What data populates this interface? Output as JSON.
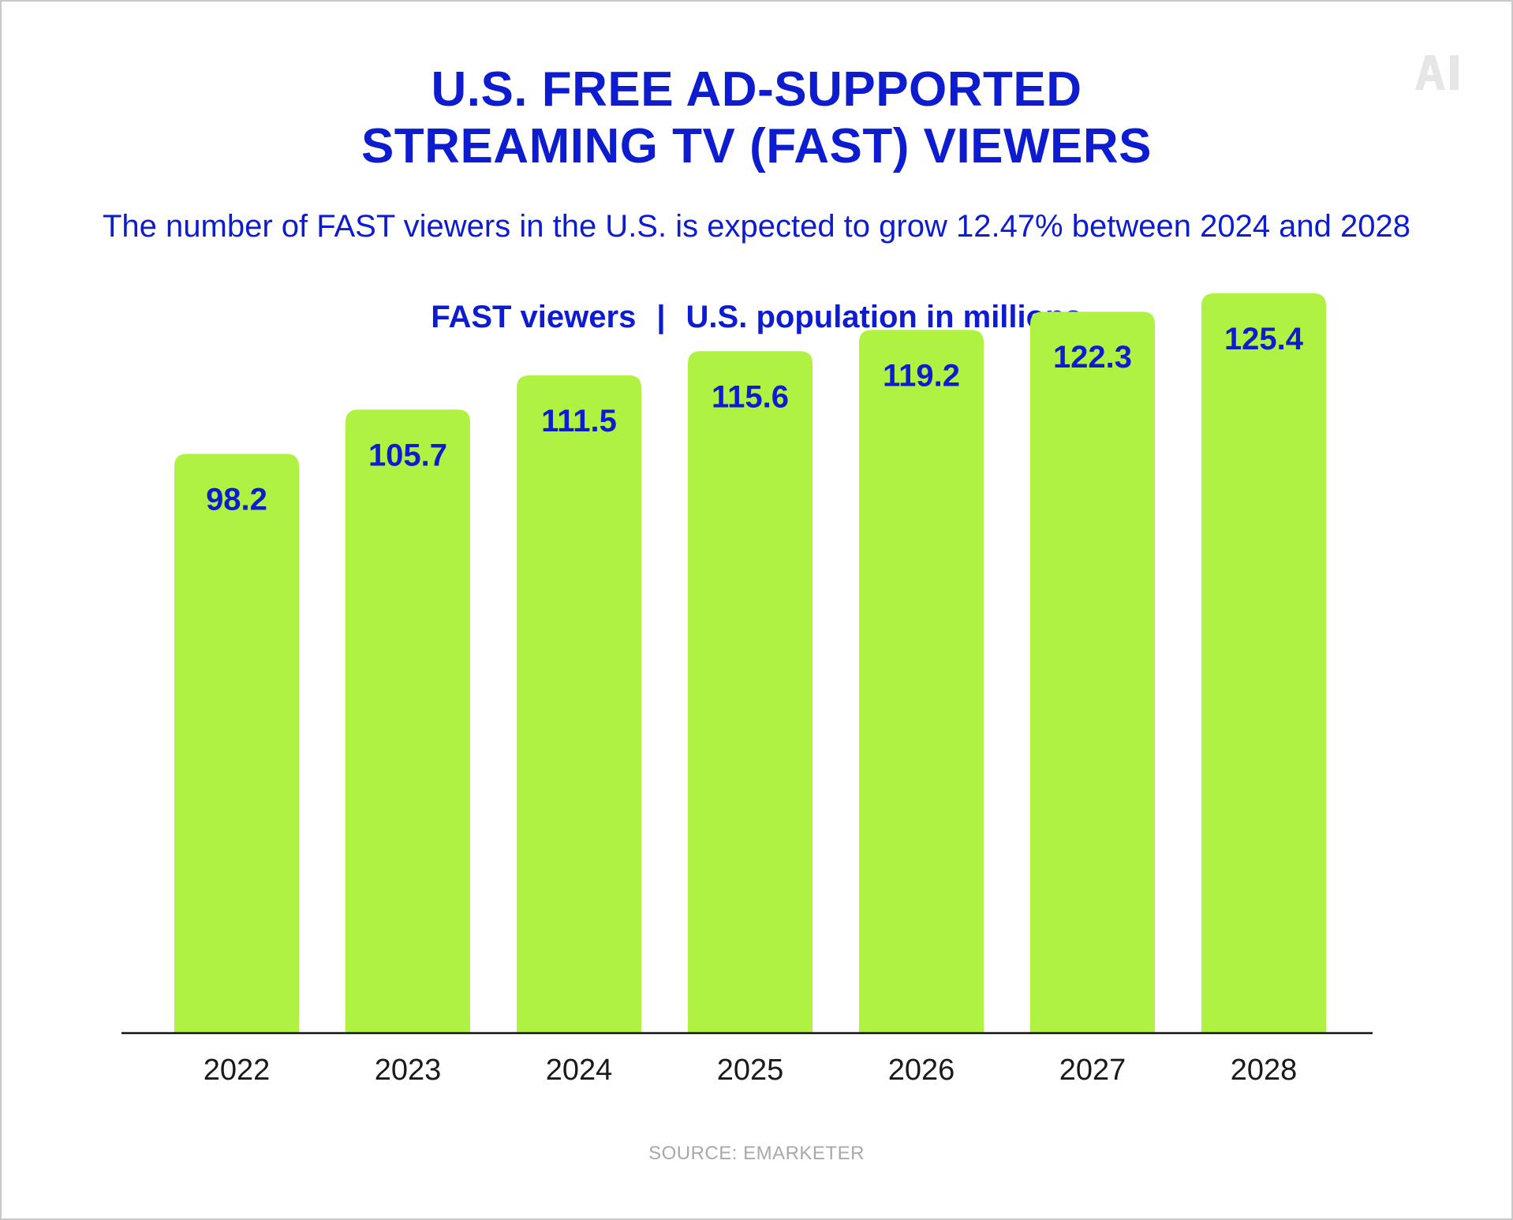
{
  "chart_data": {
    "type": "bar",
    "title_lines": [
      "U.S. FREE AD-SUPPORTED",
      "STREAMING TV (FAST) VIEWERS"
    ],
    "subtitle": "The number of FAST viewers in the U.S. is expected to grow 12.47% between 2024 and 2028",
    "legend": {
      "series_label": "FAST viewers",
      "separator": "|",
      "unit_label": "U.S. population in millions"
    },
    "categories": [
      "2022",
      "2023",
      "2024",
      "2025",
      "2026",
      "2027",
      "2028"
    ],
    "values": [
      98.2,
      105.7,
      111.5,
      115.6,
      119.2,
      122.3,
      125.4
    ],
    "data_labels": [
      "98.2",
      "105.7",
      "111.5",
      "115.6",
      "119.2",
      "122.3",
      "125.4"
    ],
    "ylim": [
      0,
      130
    ],
    "grid": false,
    "xlabel": "",
    "ylabel": ""
  },
  "source": "SOURCE: EMARKETER",
  "logo": {
    "icon": "ai-logo",
    "text": "AI"
  },
  "colors": {
    "bar": "#b0f241",
    "label": "#0d1ccf",
    "axis": "#111111",
    "tick_text": "#1a1a1a",
    "logo": "#e6e6e6",
    "source": "#a9a9a9"
  }
}
